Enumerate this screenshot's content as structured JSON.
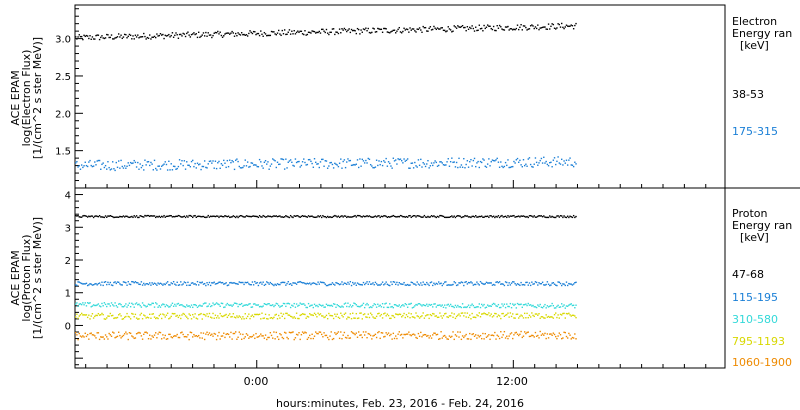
{
  "chart_data": [
    {
      "type": "scatter",
      "ylabel": [
        "ACE EPAM",
        "log(Electron Flux)",
        "[1/(cm^2 s ster MeV)]"
      ],
      "ylim": [
        1.0,
        3.45
      ],
      "yticks": [
        1.5,
        2.0,
        2.5,
        3.0
      ],
      "ytick_labels": [
        "1.5",
        "2.0",
        "2.5",
        "3.0"
      ],
      "legend": {
        "title": [
          "Electron",
          "Energy ran",
          "[keV]"
        ],
        "placement": "right"
      },
      "series": [
        {
          "name": "38-53",
          "color": "#000000",
          "start": 3.02,
          "end": 3.18,
          "noise": 0.04
        },
        {
          "name": "175-315",
          "color": "#1a7fd6",
          "start": 1.31,
          "end": 1.36,
          "noise": 0.07
        }
      ]
    },
    {
      "type": "scatter",
      "ylabel": [
        "ACE EPAM",
        "log(Proton Flux)",
        "[1/(cm^2 s ster MeV)]"
      ],
      "ylim": [
        -1.3,
        4.2
      ],
      "yticks": [
        0,
        1,
        2,
        3,
        4
      ],
      "ytick_labels": [
        "0",
        "1",
        "2",
        "3",
        "4"
      ],
      "legend": {
        "title": [
          "Proton",
          "Energy ran",
          "[keV]"
        ],
        "placement": "right"
      },
      "series": [
        {
          "name": "47-68",
          "color": "#000000",
          "start": 3.35,
          "end": 3.35,
          "noise": 0.03
        },
        {
          "name": "115-195",
          "color": "#1a7fd6",
          "start": 1.3,
          "end": 1.3,
          "noise": 0.06
        },
        {
          "name": "310-580",
          "color": "#33d9d9",
          "start": 0.65,
          "end": 0.62,
          "noise": 0.07
        },
        {
          "name": "795-1193",
          "color": "#d8d800",
          "start": 0.3,
          "end": 0.32,
          "noise": 0.09
        },
        {
          "name": "1060-1900",
          "color": "#ee8a00",
          "start": -0.3,
          "end": -0.28,
          "noise": 0.12
        }
      ]
    }
  ],
  "x_axis": {
    "label": "hours:minutes, Feb. 23, 2016 - Feb. 24, 2016",
    "ticks": [
      "0:00",
      "12:00"
    ]
  }
}
